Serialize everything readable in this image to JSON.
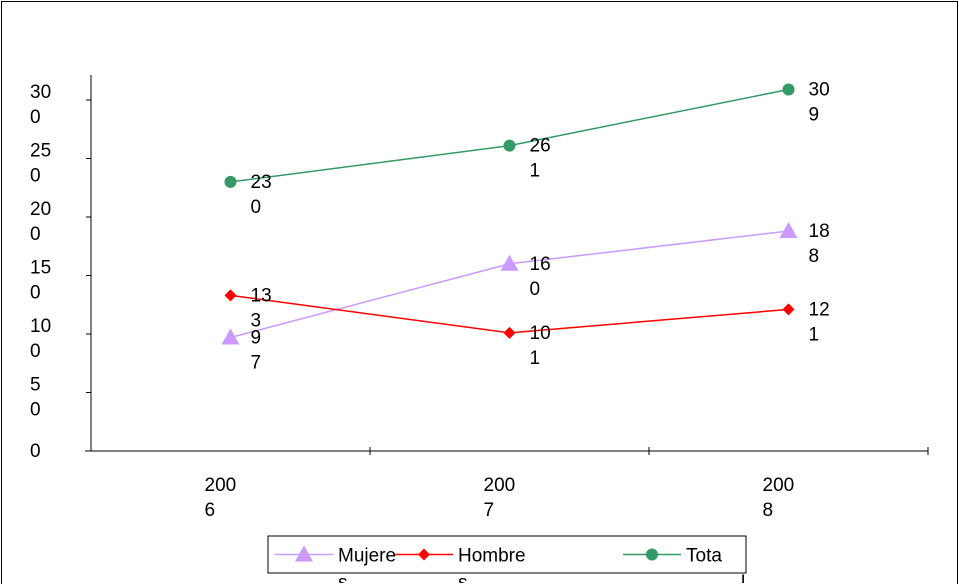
{
  "chart_data": {
    "type": "line",
    "categories": [
      "2006",
      "2007",
      "2008"
    ],
    "x_tick_labels": [
      [
        "200",
        "6"
      ],
      [
        "200",
        "7"
      ],
      [
        "200",
        "8"
      ]
    ],
    "ylim": [
      0,
      320
    ],
    "y_ticks": [
      0,
      50,
      100,
      150,
      200,
      250,
      300
    ],
    "y_tick_labels": [
      [
        "0"
      ],
      [
        "5",
        "0"
      ],
      [
        "10",
        "0"
      ],
      [
        "15",
        "0"
      ],
      [
        "20",
        "0"
      ],
      [
        "25",
        "0"
      ],
      [
        "30",
        "0"
      ]
    ],
    "grid": false,
    "legend_position": "bottom",
    "series": [
      {
        "name": "Mujere",
        "legend_wrap": "s",
        "values": [
          97,
          160,
          188
        ],
        "labels": [
          [
            "9",
            "7"
          ],
          [
            "16",
            "0"
          ],
          [
            "18",
            "8"
          ]
        ],
        "color": "#cc99ff",
        "marker": "triangle"
      },
      {
        "name": "Hombre",
        "legend_wrap": "s",
        "values": [
          133,
          101,
          121
        ],
        "labels": [
          [
            "13",
            "3"
          ],
          [
            "10",
            "1"
          ],
          [
            "12",
            "1"
          ]
        ],
        "color": "#ff0000",
        "marker": "diamond"
      },
      {
        "name": "Tota",
        "legend_wrap": "l",
        "values": [
          230,
          261,
          309
        ],
        "labels": [
          [
            "23",
            "0"
          ],
          [
            "26",
            "1"
          ],
          [
            "30",
            "9"
          ]
        ],
        "color": "#339966",
        "marker": "circle"
      }
    ]
  }
}
